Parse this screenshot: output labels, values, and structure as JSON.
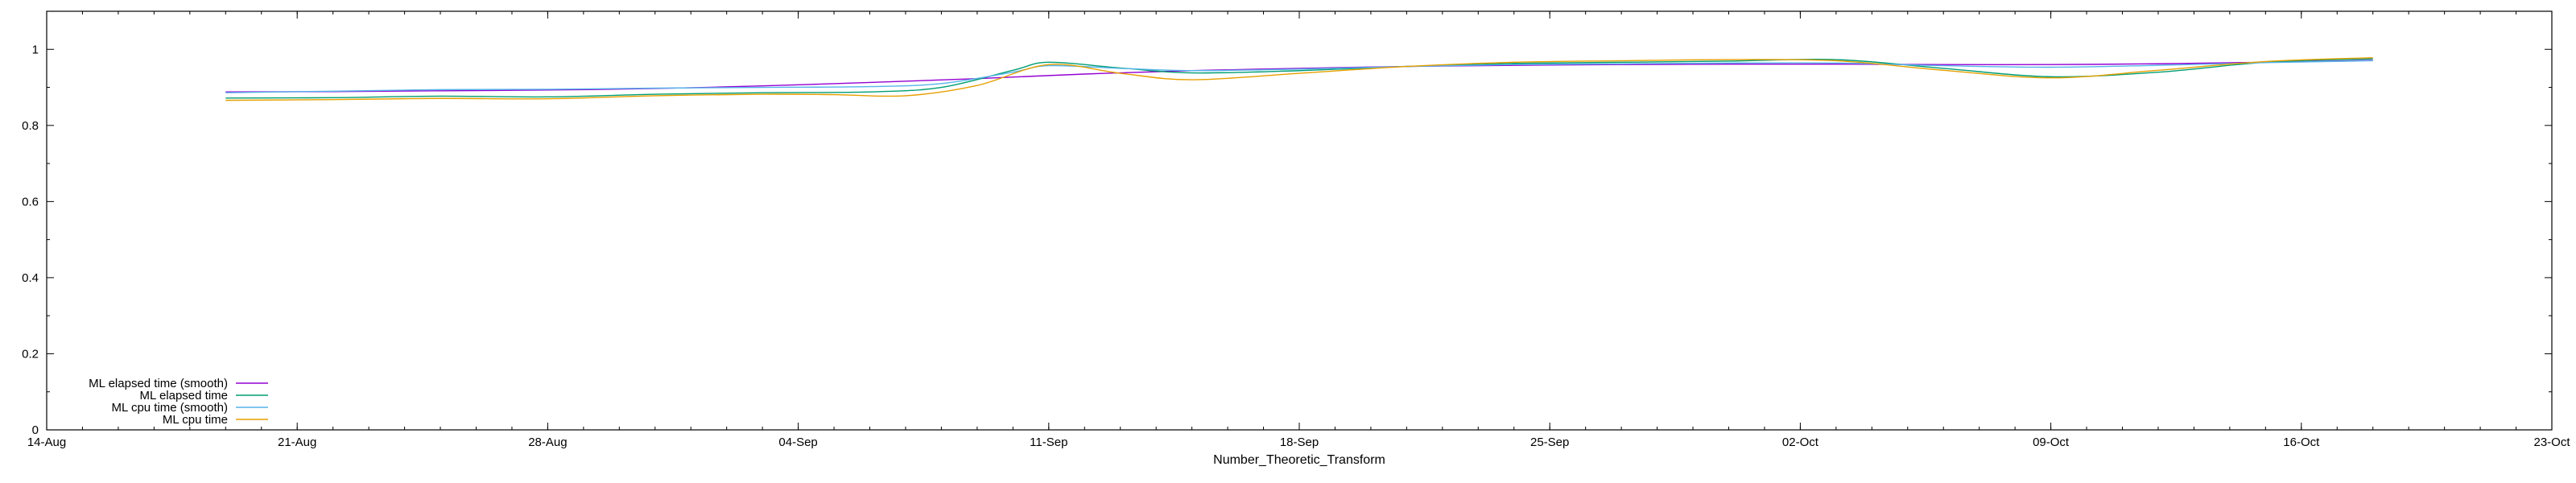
{
  "chart_data": {
    "type": "line",
    "title": "",
    "xlabel": "Number_Theoretic_Transform",
    "ylabel": "",
    "x_axis": {
      "type": "date",
      "range": [
        "2023-08-14",
        "2023-10-23"
      ],
      "ticks": [
        {
          "date": "2023-08-14",
          "label": "14-Aug"
        },
        {
          "date": "2023-08-21",
          "label": "21-Aug"
        },
        {
          "date": "2023-08-28",
          "label": "28-Aug"
        },
        {
          "date": "2023-09-04",
          "label": "04-Sep"
        },
        {
          "date": "2023-09-11",
          "label": "11-Sep"
        },
        {
          "date": "2023-09-18",
          "label": "18-Sep"
        },
        {
          "date": "2023-09-25",
          "label": "25-Sep"
        },
        {
          "date": "2023-10-02",
          "label": "02-Oct"
        },
        {
          "date": "2023-10-09",
          "label": "09-Oct"
        },
        {
          "date": "2023-10-16",
          "label": "16-Oct"
        },
        {
          "date": "2023-10-23",
          "label": "23-Oct"
        }
      ]
    },
    "y_axis": {
      "range": [
        0,
        1.1
      ],
      "ticks": [
        {
          "value": 0,
          "label": "0"
        },
        {
          "value": 0.2,
          "label": "0.2"
        },
        {
          "value": 0.4,
          "label": "0.4"
        },
        {
          "value": 0.6,
          "label": "0.6"
        },
        {
          "value": 0.8,
          "label": "0.8"
        },
        {
          "value": 1,
          "label": "1"
        }
      ]
    },
    "grid": false,
    "legend": {
      "position": "bottom-left"
    },
    "series": [
      {
        "name": "ML elapsed time (smooth)",
        "color": "#9400d3",
        "points": [
          [
            "2023-08-19",
            0.888
          ],
          [
            "2023-08-22",
            0.889
          ],
          [
            "2023-08-25",
            0.891
          ],
          [
            "2023-08-28",
            0.893
          ],
          [
            "2023-08-31",
            0.897
          ],
          [
            "2023-09-03",
            0.904
          ],
          [
            "2023-09-06",
            0.913
          ],
          [
            "2023-09-09",
            0.923
          ],
          [
            "2023-09-12",
            0.935
          ],
          [
            "2023-09-15",
            0.944
          ],
          [
            "2023-09-18",
            0.95
          ],
          [
            "2023-09-21",
            0.955
          ],
          [
            "2023-09-24",
            0.958
          ],
          [
            "2023-09-27",
            0.96
          ],
          [
            "2023-09-30",
            0.961
          ],
          [
            "2023-10-03",
            0.961
          ],
          [
            "2023-10-06",
            0.96
          ],
          [
            "2023-10-09",
            0.96
          ],
          [
            "2023-10-12",
            0.962
          ],
          [
            "2023-10-15",
            0.966
          ],
          [
            "2023-10-18",
            0.971
          ]
        ]
      },
      {
        "name": "ML elapsed time",
        "color": "#009e73",
        "points": [
          [
            "2023-08-19",
            0.872
          ],
          [
            "2023-08-22",
            0.873
          ],
          [
            "2023-08-25",
            0.877
          ],
          [
            "2023-08-28",
            0.875
          ],
          [
            "2023-08-31",
            0.882
          ],
          [
            "2023-09-03",
            0.886
          ],
          [
            "2023-09-06",
            0.888
          ],
          [
            "2023-09-08",
            0.9
          ],
          [
            "2023-09-10",
            0.945
          ],
          [
            "2023-09-11",
            0.966
          ],
          [
            "2023-09-13",
            0.951
          ],
          [
            "2023-09-15",
            0.938
          ],
          [
            "2023-09-18",
            0.944
          ],
          [
            "2023-09-21",
            0.955
          ],
          [
            "2023-09-24",
            0.963
          ],
          [
            "2023-09-27",
            0.966
          ],
          [
            "2023-09-30",
            0.969
          ],
          [
            "2023-10-03",
            0.973
          ],
          [
            "2023-10-06",
            0.95
          ],
          [
            "2023-10-09",
            0.928
          ],
          [
            "2023-10-12",
            0.94
          ],
          [
            "2023-10-15",
            0.966
          ],
          [
            "2023-10-18",
            0.975
          ]
        ]
      },
      {
        "name": "ML cpu time (smooth)",
        "color": "#56b4e9",
        "points": [
          [
            "2023-08-19",
            0.886
          ],
          [
            "2023-08-22",
            0.89
          ],
          [
            "2023-08-25",
            0.894
          ],
          [
            "2023-08-28",
            0.895
          ],
          [
            "2023-08-31",
            0.898
          ],
          [
            "2023-09-03",
            0.9
          ],
          [
            "2023-09-06",
            0.902
          ],
          [
            "2023-09-08",
            0.91
          ],
          [
            "2023-09-10",
            0.94
          ],
          [
            "2023-09-11",
            0.957
          ],
          [
            "2023-09-13",
            0.95
          ],
          [
            "2023-09-15",
            0.944
          ],
          [
            "2023-09-18",
            0.948
          ],
          [
            "2023-09-21",
            0.955
          ],
          [
            "2023-09-24",
            0.96
          ],
          [
            "2023-09-27",
            0.962
          ],
          [
            "2023-09-30",
            0.964
          ],
          [
            "2023-10-03",
            0.964
          ],
          [
            "2023-10-06",
            0.957
          ],
          [
            "2023-10-09",
            0.953
          ],
          [
            "2023-10-12",
            0.958
          ],
          [
            "2023-10-15",
            0.965
          ],
          [
            "2023-10-18",
            0.97
          ]
        ]
      },
      {
        "name": "ML cpu time",
        "color": "#e69f00",
        "points": [
          [
            "2023-08-19",
            0.866
          ],
          [
            "2023-08-22",
            0.868
          ],
          [
            "2023-08-25",
            0.871
          ],
          [
            "2023-08-28",
            0.87
          ],
          [
            "2023-08-31",
            0.878
          ],
          [
            "2023-09-03",
            0.882
          ],
          [
            "2023-09-05",
            0.881
          ],
          [
            "2023-09-07",
            0.878
          ],
          [
            "2023-09-09",
            0.905
          ],
          [
            "2023-09-11",
            0.96
          ],
          [
            "2023-09-13",
            0.937
          ],
          [
            "2023-09-15",
            0.92
          ],
          [
            "2023-09-18",
            0.937
          ],
          [
            "2023-09-21",
            0.955
          ],
          [
            "2023-09-24",
            0.966
          ],
          [
            "2023-09-27",
            0.97
          ],
          [
            "2023-09-30",
            0.973
          ],
          [
            "2023-10-03",
            0.97
          ],
          [
            "2023-10-06",
            0.945
          ],
          [
            "2023-10-09",
            0.925
          ],
          [
            "2023-10-12",
            0.945
          ],
          [
            "2023-10-15",
            0.968
          ],
          [
            "2023-10-18",
            0.978
          ]
        ]
      }
    ]
  }
}
